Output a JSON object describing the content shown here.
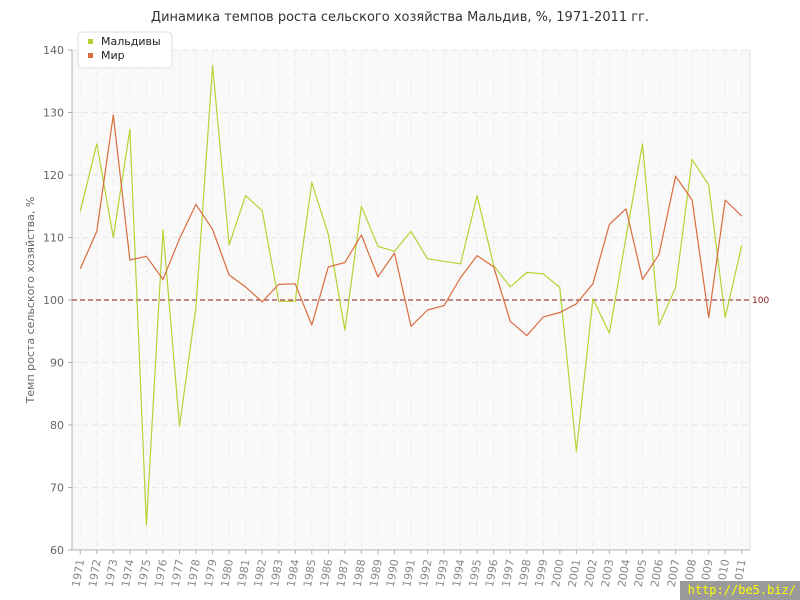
{
  "chart_data": {
    "type": "line",
    "title": "Динамика темпов роста сельского хозяйства Мальдив, %, 1971-2011 гг.",
    "ylabel": "Темп роста сельского хозяйства, %",
    "xlabel": "",
    "ylim": [
      60,
      140
    ],
    "yticks": [
      60,
      70,
      80,
      90,
      100,
      110,
      120,
      130,
      140
    ],
    "grid": true,
    "legend_position": "top-left",
    "reference_line": {
      "value": 100,
      "label": "100",
      "color": "#8b1a1a"
    },
    "x": [
      "1971",
      "1972",
      "1973",
      "1974",
      "1975",
      "1976",
      "1977",
      "1978",
      "1979",
      "1980",
      "1981",
      "1982",
      "1983",
      "1984",
      "1985",
      "1986",
      "1987",
      "1988",
      "1989",
      "1990",
      "1991",
      "1992",
      "1993",
      "1994",
      "1995",
      "1996",
      "1997",
      "1998",
      "1999",
      "2000",
      "2001",
      "2002",
      "2003",
      "2004",
      "2005",
      "2006",
      "2007",
      "2008",
      "2009",
      "2010",
      "2011"
    ],
    "series": [
      {
        "name": "Мальдивы",
        "color": "#b5d334",
        "values": [
          114.2,
          125.0,
          110.0,
          127.3,
          64.0,
          111.2,
          79.8,
          99.0,
          137.5,
          108.8,
          116.7,
          114.3,
          99.8,
          99.8,
          118.8,
          110.5,
          95.2,
          115.0,
          108.6,
          107.8,
          111.0,
          106.6,
          106.2,
          105.8,
          116.7,
          105.5,
          102.1,
          104.4,
          104.2,
          102.0,
          75.8,
          100.2,
          94.7,
          110.0,
          125.0,
          96.0,
          102.0,
          122.5,
          118.4,
          97.2,
          108.7
        ]
      },
      {
        "name": "Мир",
        "color": "#d96c3e",
        "values": [
          105.0,
          111.0,
          129.6,
          106.4,
          107.0,
          103.3,
          109.8,
          115.3,
          111.3,
          104.0,
          102.1,
          99.7,
          102.5,
          102.6,
          96.0,
          105.3,
          106.0,
          110.4,
          103.7,
          107.5,
          95.8,
          98.4,
          99.1,
          103.6,
          107.1,
          105.3,
          96.6,
          94.3,
          97.3,
          98.0,
          99.4,
          102.6,
          112.1,
          114.6,
          103.3,
          107.3,
          119.8,
          116.0,
          97.2,
          116.0,
          113.4
        ]
      }
    ]
  },
  "watermark": "http://be5.biz/"
}
